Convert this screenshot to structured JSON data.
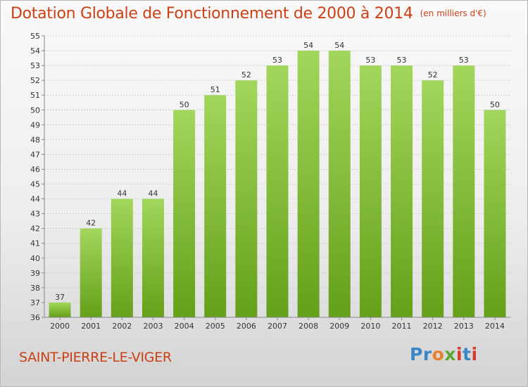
{
  "title": {
    "main": "Dotation Globale de Fonctionnement de 2000 à 2014",
    "sub": "(en milliers d'€)"
  },
  "commune": "SAINT-PIERRE-LE-VIGER",
  "logo": {
    "text": "Proxiti"
  },
  "colors": {
    "bar_light": "#a3d65c",
    "bar_dark": "#64a019",
    "title": "#cc3f14",
    "grid": "#cfcfcf"
  },
  "chart_data": {
    "type": "bar",
    "title": "Dotation Globale de Fonctionnement de 2000 à 2014",
    "subtitle": "(en milliers d'€)",
    "categories": [
      "2000",
      "2001",
      "2002",
      "2003",
      "2004",
      "2005",
      "2006",
      "2007",
      "2008",
      "2009",
      "2010",
      "2011",
      "2012",
      "2013",
      "2014"
    ],
    "values": [
      37,
      42,
      44,
      44,
      50,
      51,
      52,
      53,
      54,
      54,
      53,
      53,
      52,
      53,
      50
    ],
    "ylim": [
      36,
      55
    ],
    "yticks": [
      36,
      37,
      38,
      39,
      40,
      41,
      42,
      43,
      44,
      45,
      46,
      47,
      48,
      49,
      50,
      51,
      52,
      53,
      54,
      55
    ],
    "grid": true,
    "legend": "none",
    "data_labels": true
  }
}
